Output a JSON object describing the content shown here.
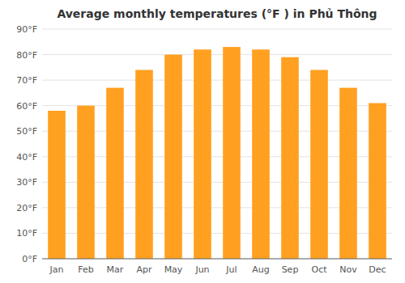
{
  "chart_data": {
    "type": "bar",
    "title": "Average monthly temperatures (°F ) in Phủ Thông",
    "categories": [
      "Jan",
      "Feb",
      "Mar",
      "Apr",
      "May",
      "Jun",
      "Jul",
      "Aug",
      "Sep",
      "Oct",
      "Nov",
      "Dec"
    ],
    "values": [
      58,
      60,
      67,
      74,
      80,
      82,
      83,
      82,
      79,
      74,
      67,
      61
    ],
    "color": "#FFA020",
    "ylim": [
      0,
      90
    ],
    "yticks": [
      {
        "value": 0,
        "label": "0°F"
      },
      {
        "value": 10,
        "label": "10°F"
      },
      {
        "value": 20,
        "label": "20°F"
      },
      {
        "value": 30,
        "label": "30°F"
      },
      {
        "value": 40,
        "label": "40°F"
      },
      {
        "value": 50,
        "label": "50°F"
      },
      {
        "value": 60,
        "label": "60°F"
      },
      {
        "value": 70,
        "label": "70°F"
      },
      {
        "value": 80,
        "label": "80°F"
      },
      {
        "value": 90,
        "label": "90°F"
      }
    ],
    "grid": true
  }
}
